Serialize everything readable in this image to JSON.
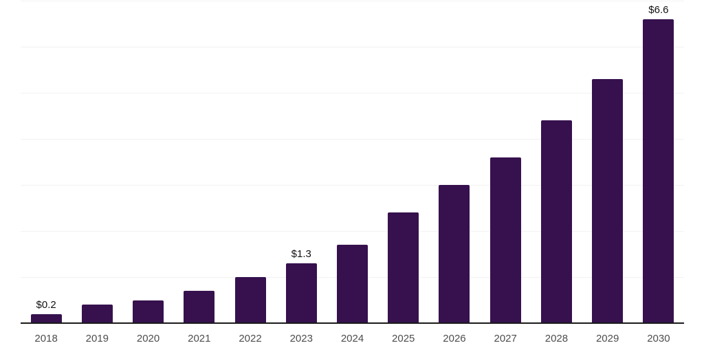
{
  "chart_data": {
    "type": "bar",
    "title": "",
    "xlabel": "",
    "ylabel": "",
    "categories": [
      "2018",
      "2019",
      "2020",
      "2021",
      "2022",
      "2023",
      "2024",
      "2025",
      "2026",
      "2027",
      "2028",
      "2029",
      "2030"
    ],
    "values": [
      0.2,
      0.4,
      0.5,
      0.7,
      1.0,
      1.3,
      1.7,
      2.4,
      3.0,
      3.6,
      4.4,
      5.3,
      6.6
    ],
    "value_labels": [
      {
        "category": "2018",
        "text": "$0.2"
      },
      {
        "category": "2023",
        "text": "$1.3"
      },
      {
        "category": "2030",
        "text": "$6.6"
      }
    ],
    "ylim": [
      0,
      7
    ],
    "gridline_step": 1,
    "grid": true,
    "legend_position": "none",
    "colors": {
      "bar": "#36114E",
      "gridline": "#F2F2F2",
      "axis_line": "#1A1A1A",
      "tick_label": "#4D4D4D",
      "value_label": "#111111",
      "background": "#FFFFFF"
    }
  }
}
